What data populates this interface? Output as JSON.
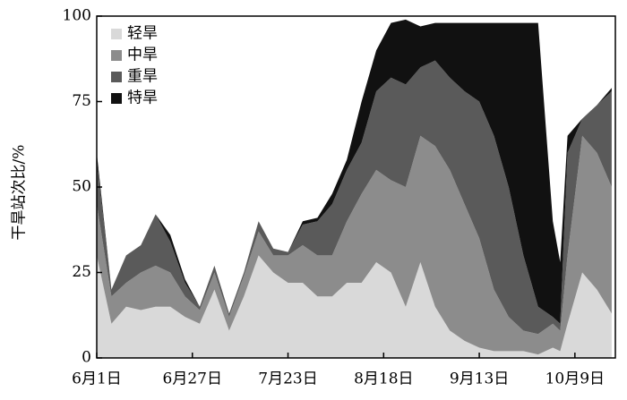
{
  "chart_data": {
    "type": "stacked-area",
    "y_label": "干旱站次比/%",
    "x": [
      "6月1日",
      "6月5日",
      "6月9日",
      "6月13日",
      "6月17日",
      "6月21日",
      "6月25日",
      "6月29日",
      "7月3日",
      "7月7日",
      "7月11日",
      "7月15日",
      "7月19日",
      "7月23日",
      "7月27日",
      "7月31日",
      "8月4日",
      "8月8日",
      "8月12日",
      "8月16日",
      "8月20日",
      "8月24日",
      "8月28日",
      "9月1日",
      "9月5日",
      "9月9日",
      "9月13日",
      "9月17日",
      "9月21日",
      "9月25日",
      "9月29日",
      "10月3日",
      "10月5日",
      "10月7日",
      "10月11日",
      "10月15日",
      "10月19日"
    ],
    "series": [
      {
        "name": "轻旱",
        "color": "#d9d9d9",
        "values": [
          30,
          10,
          15,
          14,
          15,
          15,
          12,
          10,
          20,
          8,
          18,
          30,
          25,
          22,
          22,
          18,
          18,
          22,
          22,
          28,
          25,
          15,
          28,
          15,
          8,
          5,
          3,
          2,
          2,
          2,
          1,
          3,
          2,
          10,
          25,
          20,
          13
        ]
      },
      {
        "name": "中旱",
        "color": "#8c8c8c",
        "values": [
          15,
          8,
          7,
          11,
          12,
          10,
          6,
          4,
          5,
          4,
          6,
          7,
          5,
          8,
          11,
          12,
          12,
          18,
          26,
          27,
          27,
          35,
          37,
          47,
          47,
          40,
          32,
          18,
          10,
          6,
          6,
          7,
          6,
          20,
          40,
          40,
          37
        ]
      },
      {
        "name": "重旱",
        "color": "#5a5a5a",
        "values": [
          13,
          2,
          8,
          8,
          15,
          9,
          4,
          1,
          2,
          1,
          1,
          3,
          2,
          1,
          6,
          10,
          15,
          15,
          15,
          23,
          30,
          30,
          20,
          25,
          27,
          33,
          40,
          45,
          38,
          22,
          8,
          2,
          2,
          30,
          5,
          14,
          28
        ]
      },
      {
        "name": "特旱",
        "color": "#111111",
        "values": [
          2,
          0,
          0,
          0,
          0,
          2,
          1,
          0,
          0,
          0,
          0,
          0,
          0,
          0,
          1,
          1,
          3,
          3,
          12,
          12,
          16,
          19,
          12,
          11,
          16,
          20,
          23,
          33,
          48,
          68,
          83,
          28,
          18,
          5,
          0,
          0,
          1
        ]
      }
    ],
    "xlim": [
      "6月1日",
      "10月20日"
    ],
    "xticks": [
      "6月1日",
      "6月27日",
      "7月23日",
      "8月18日",
      "9月13日",
      "10月9日"
    ],
    "ylim": [
      0,
      100
    ],
    "yticks": [
      0,
      25,
      50,
      75,
      100
    ],
    "legend": "upper-left"
  }
}
